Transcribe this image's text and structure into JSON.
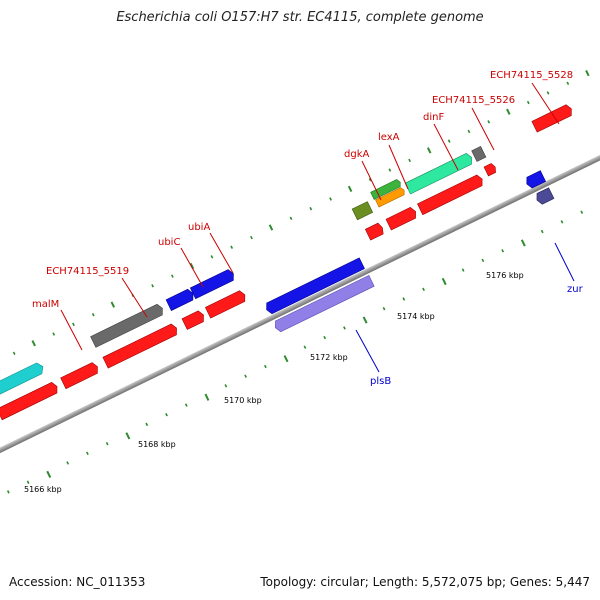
{
  "title": "Escherichia coli O157:H7 str. EC4115, complete genome",
  "footer": {
    "accession": "Accession: NC_011353",
    "topology": "Topology: circular; Length: 5,572,075 bp; Genes: 5,447"
  },
  "colors": {
    "forward_cds": "#ff1a1a",
    "reverse_cds": "#8f7fe6",
    "label_top": "#cc0000",
    "label_bottom": "#0000cc",
    "tick": "#2e8b2e",
    "backbone": "#8c8c8c"
  },
  "scale": {
    "ticks": [
      {
        "label": "5166 kbp"
      },
      {
        "label": "5168 kbp"
      },
      {
        "label": "5170 kbp"
      },
      {
        "label": "5172 kbp"
      },
      {
        "label": "5174 kbp"
      },
      {
        "label": "5176 kbp"
      }
    ]
  },
  "gene_labels_top": [
    {
      "label": "malM"
    },
    {
      "label": "ECH74115_5519"
    },
    {
      "label": "ubiC"
    },
    {
      "label": "ubiA"
    },
    {
      "label": "dgkA"
    },
    {
      "label": "lexA"
    },
    {
      "label": "dinF"
    },
    {
      "label": "ECH74115_5526"
    },
    {
      "label": "ECH74115_5528"
    }
  ],
  "gene_labels_bottom": [
    {
      "label": "plsB"
    },
    {
      "label": "zur"
    }
  ]
}
